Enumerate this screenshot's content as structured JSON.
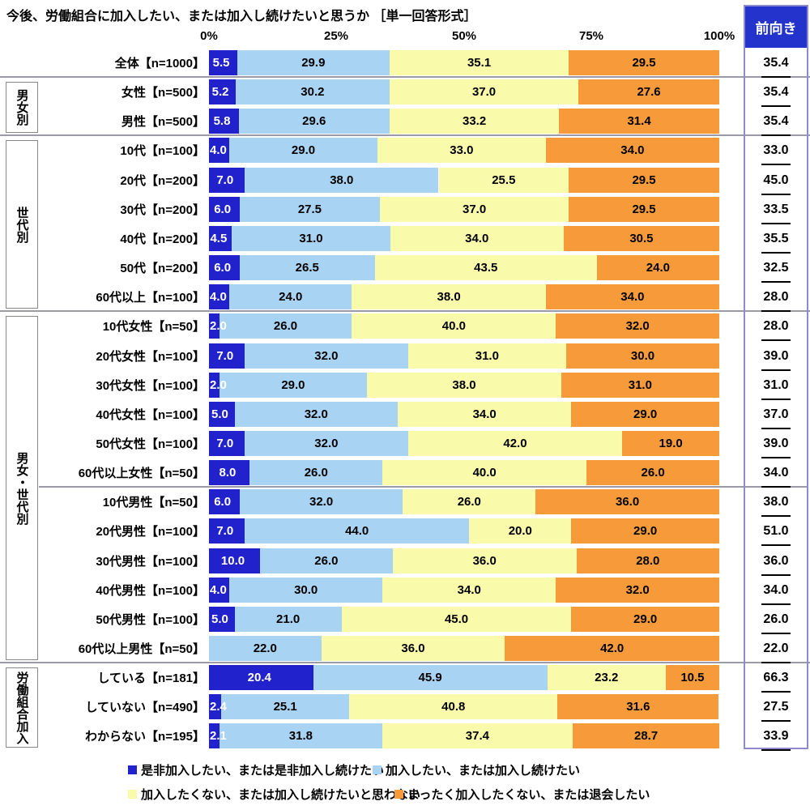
{
  "title": "今後、労働組合に加入したい、または加入し続けたいと思うか ［単一回答形式］",
  "positive_header": "前向き",
  "colors": {
    "navy": "#2222cc",
    "lightblue": "#a8d3f2",
    "yellow": "#fafaab",
    "orange": "#f79b3a",
    "header_blue": "#2333cb",
    "column_border": "#8c8ccd",
    "separator": "#9a9aa8",
    "group_box_border": "#888888"
  },
  "legend": [
    {
      "label": "是非加入したい、または是非加入し続けたい",
      "color_key": "navy"
    },
    {
      "label": "加入したい、または加入し続けたい",
      "color_key": "lightblue"
    },
    {
      "label": "加入したくない、または加入し続けたいと思わない",
      "color_key": "yellow"
    },
    {
      "label": "まったく加入したくない、または退会したい",
      "color_key": "orange"
    }
  ],
  "chart_data": {
    "type": "bar",
    "stacked": true,
    "orientation": "horizontal",
    "unit": "%",
    "xlim": [
      0,
      100
    ],
    "x_ticks": [
      "0%",
      "25%",
      "50%",
      "75%",
      "100%"
    ],
    "positive_column_label": "前向き",
    "series_names": [
      "是非加入したい、または是非加入し続けたい",
      "加入したい、または加入し続けたい",
      "加入したくない、または加入し続けたいと思わない",
      "まったく加入したくない、または退会したい"
    ],
    "groups": [
      {
        "label": "",
        "rows": [
          {
            "label": "全体【n=1000】",
            "values": [
              5.5,
              29.9,
              35.1,
              29.5
            ],
            "positive": 35.4
          }
        ]
      },
      {
        "label": "男女別",
        "rows": [
          {
            "label": "女性【n=500】",
            "values": [
              5.2,
              30.2,
              37.0,
              27.6
            ],
            "positive": 35.4
          },
          {
            "label": "男性【n=500】",
            "values": [
              5.8,
              29.6,
              33.2,
              31.4
            ],
            "positive": 35.4
          }
        ]
      },
      {
        "label": "世代別",
        "rows": [
          {
            "label": "10代【n=100】",
            "values": [
              4.0,
              29.0,
              33.0,
              34.0
            ],
            "positive": 33.0
          },
          {
            "label": "20代【n=200】",
            "values": [
              7.0,
              38.0,
              25.5,
              29.5
            ],
            "positive": 45.0
          },
          {
            "label": "30代【n=200】",
            "values": [
              6.0,
              27.5,
              37.0,
              29.5
            ],
            "positive": 33.5
          },
          {
            "label": "40代【n=200】",
            "values": [
              4.5,
              31.0,
              34.0,
              30.5
            ],
            "positive": 35.5
          },
          {
            "label": "50代【n=200】",
            "values": [
              6.0,
              26.5,
              43.5,
              24.0
            ],
            "positive": 32.5
          },
          {
            "label": "60代以上【n=100】",
            "values": [
              4.0,
              24.0,
              38.0,
              34.0
            ],
            "positive": 28.0
          }
        ]
      },
      {
        "label": "男女・世代別",
        "divider_after_local": 5,
        "rows": [
          {
            "label": "10代女性【n=50】",
            "values": [
              2.0,
              26.0,
              40.0,
              32.0
            ],
            "positive": 28.0
          },
          {
            "label": "20代女性【n=100】",
            "values": [
              7.0,
              32.0,
              31.0,
              30.0
            ],
            "positive": 39.0
          },
          {
            "label": "30代女性【n=100】",
            "values": [
              2.0,
              29.0,
              38.0,
              31.0
            ],
            "positive": 31.0
          },
          {
            "label": "40代女性【n=100】",
            "values": [
              5.0,
              32.0,
              34.0,
              29.0
            ],
            "positive": 37.0
          },
          {
            "label": "50代女性【n=100】",
            "values": [
              7.0,
              32.0,
              42.0,
              19.0
            ],
            "positive": 39.0
          },
          {
            "label": "60代以上女性【n=50】",
            "values": [
              8.0,
              26.0,
              40.0,
              26.0
            ],
            "positive": 34.0
          },
          {
            "label": "10代男性【n=50】",
            "values": [
              6.0,
              32.0,
              26.0,
              36.0
            ],
            "positive": 38.0
          },
          {
            "label": "20代男性【n=100】",
            "values": [
              7.0,
              44.0,
              20.0,
              29.0
            ],
            "positive": 51.0
          },
          {
            "label": "30代男性【n=100】",
            "values": [
              10.0,
              26.0,
              36.0,
              28.0
            ],
            "positive": 36.0
          },
          {
            "label": "40代男性【n=100】",
            "values": [
              4.0,
              30.0,
              34.0,
              32.0
            ],
            "positive": 34.0
          },
          {
            "label": "50代男性【n=100】",
            "values": [
              5.0,
              21.0,
              45.0,
              29.0
            ],
            "positive": 26.0
          },
          {
            "label": "60代以上男性【n=50】",
            "values": [
              0.0,
              22.0,
              36.0,
              42.0
            ],
            "positive": 22.0
          }
        ]
      },
      {
        "label": "労働組合加入",
        "rows": [
          {
            "label": "している【n=181】",
            "values": [
              20.4,
              45.9,
              23.2,
              10.5
            ],
            "positive": 66.3
          },
          {
            "label": "していない【n=490】",
            "values": [
              2.4,
              25.1,
              40.8,
              31.6
            ],
            "positive": 27.5
          },
          {
            "label": "わからない【n=195】",
            "values": [
              2.1,
              31.8,
              37.4,
              28.7
            ],
            "positive": 33.9
          }
        ]
      }
    ]
  }
}
